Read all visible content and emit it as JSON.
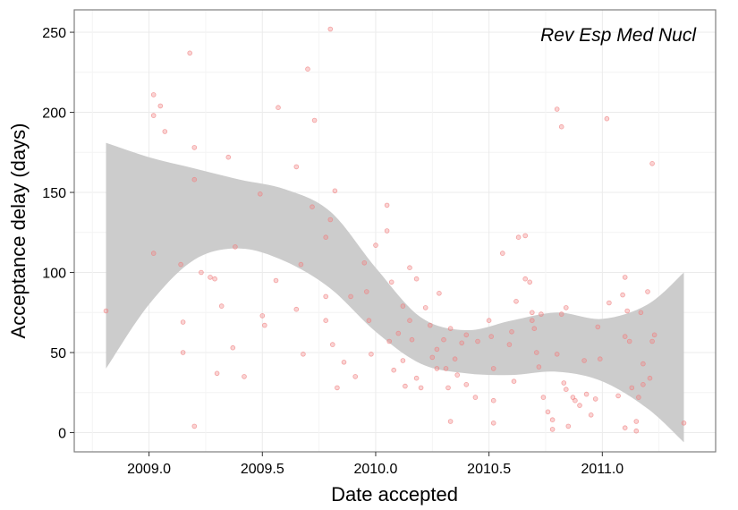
{
  "chart_data": {
    "type": "scatter",
    "title": "",
    "annotation": "Rev Esp Med Nucl",
    "xlabel": "Date accepted",
    "ylabel": "Acceptance delay (days)",
    "xlim": [
      2008.67,
      2011.5
    ],
    "ylim": [
      -12,
      264
    ],
    "xticks": [
      2009.0,
      2009.5,
      2010.0,
      2010.5,
      2011.0
    ],
    "xtick_labels": [
      "2009.0",
      "2009.5",
      "2010.0",
      "2010.5",
      "2011.0"
    ],
    "yticks": [
      0,
      50,
      100,
      150,
      200,
      250
    ],
    "ytick_labels": [
      "0",
      "50",
      "100",
      "150",
      "200",
      "250"
    ],
    "grid": true,
    "colors": {
      "points": "#f08080",
      "band": "#cccccc",
      "panel_border": "#7f7f7f",
      "grid": "#ebebeb"
    },
    "smooth_band": {
      "x": [
        2008.81,
        2009.0,
        2009.2,
        2009.4,
        2009.6,
        2009.8,
        2010.0,
        2010.2,
        2010.4,
        2010.6,
        2010.8,
        2011.0,
        2011.2,
        2011.36
      ],
      "upper": [
        181,
        172,
        165,
        158,
        152,
        138,
        103,
        72,
        64,
        70,
        75,
        71,
        80,
        100
      ],
      "lower": [
        40,
        80,
        108,
        115,
        107,
        90,
        63,
        43,
        37,
        36,
        38,
        32,
        15,
        -6
      ]
    },
    "points": [
      {
        "x": 2008.81,
        "y": 76
      },
      {
        "x": 2009.02,
        "y": 211
      },
      {
        "x": 2009.02,
        "y": 198
      },
      {
        "x": 2009.05,
        "y": 204
      },
      {
        "x": 2009.07,
        "y": 188
      },
      {
        "x": 2009.02,
        "y": 112
      },
      {
        "x": 2009.14,
        "y": 105
      },
      {
        "x": 2009.15,
        "y": 69
      },
      {
        "x": 2009.15,
        "y": 50
      },
      {
        "x": 2009.18,
        "y": 237
      },
      {
        "x": 2009.2,
        "y": 178
      },
      {
        "x": 2009.2,
        "y": 158
      },
      {
        "x": 2009.23,
        "y": 100
      },
      {
        "x": 2009.2,
        "y": 4
      },
      {
        "x": 2009.27,
        "y": 97
      },
      {
        "x": 2009.29,
        "y": 96
      },
      {
        "x": 2009.32,
        "y": 79
      },
      {
        "x": 2009.35,
        "y": 172
      },
      {
        "x": 2009.37,
        "y": 53
      },
      {
        "x": 2009.38,
        "y": 116
      },
      {
        "x": 2009.3,
        "y": 37
      },
      {
        "x": 2009.42,
        "y": 35
      },
      {
        "x": 2009.49,
        "y": 149
      },
      {
        "x": 2009.5,
        "y": 73
      },
      {
        "x": 2009.51,
        "y": 67
      },
      {
        "x": 2009.57,
        "y": 203
      },
      {
        "x": 2009.56,
        "y": 95
      },
      {
        "x": 2009.65,
        "y": 166
      },
      {
        "x": 2009.65,
        "y": 77
      },
      {
        "x": 2009.67,
        "y": 105
      },
      {
        "x": 2009.68,
        "y": 49
      },
      {
        "x": 2009.7,
        "y": 227
      },
      {
        "x": 2009.73,
        "y": 195
      },
      {
        "x": 2009.72,
        "y": 141
      },
      {
        "x": 2009.78,
        "y": 122
      },
      {
        "x": 2009.8,
        "y": 252
      },
      {
        "x": 2009.8,
        "y": 133
      },
      {
        "x": 2009.82,
        "y": 151
      },
      {
        "x": 2009.78,
        "y": 85
      },
      {
        "x": 2009.78,
        "y": 70
      },
      {
        "x": 2009.81,
        "y": 55
      },
      {
        "x": 2009.83,
        "y": 28
      },
      {
        "x": 2009.86,
        "y": 44
      },
      {
        "x": 2009.89,
        "y": 85
      },
      {
        "x": 2009.91,
        "y": 35
      },
      {
        "x": 2009.95,
        "y": 106
      },
      {
        "x": 2009.96,
        "y": 88
      },
      {
        "x": 2009.97,
        "y": 70
      },
      {
        "x": 2009.98,
        "y": 49
      },
      {
        "x": 2010.0,
        "y": 117
      },
      {
        "x": 2010.05,
        "y": 142
      },
      {
        "x": 2010.05,
        "y": 126
      },
      {
        "x": 2010.07,
        "y": 94
      },
      {
        "x": 2010.06,
        "y": 57
      },
      {
        "x": 2010.08,
        "y": 39
      },
      {
        "x": 2010.12,
        "y": 79
      },
      {
        "x": 2010.12,
        "y": 45
      },
      {
        "x": 2010.13,
        "y": 29
      },
      {
        "x": 2010.15,
        "y": 103
      },
      {
        "x": 2010.15,
        "y": 70
      },
      {
        "x": 2010.18,
        "y": 96
      },
      {
        "x": 2010.16,
        "y": 58
      },
      {
        "x": 2010.18,
        "y": 34
      },
      {
        "x": 2010.2,
        "y": 28
      },
      {
        "x": 2010.22,
        "y": 78
      },
      {
        "x": 2010.24,
        "y": 67
      },
      {
        "x": 2010.25,
        "y": 47
      },
      {
        "x": 2010.27,
        "y": 52
      },
      {
        "x": 2010.28,
        "y": 87
      },
      {
        "x": 2010.3,
        "y": 58
      },
      {
        "x": 2010.31,
        "y": 40
      },
      {
        "x": 2010.32,
        "y": 28
      },
      {
        "x": 2010.33,
        "y": 65
      },
      {
        "x": 2010.35,
        "y": 46
      },
      {
        "x": 2010.33,
        "y": 7
      },
      {
        "x": 2010.38,
        "y": 56
      },
      {
        "x": 2010.4,
        "y": 61
      },
      {
        "x": 2010.4,
        "y": 30
      },
      {
        "x": 2010.44,
        "y": 22
      },
      {
        "x": 2010.45,
        "y": 57
      },
      {
        "x": 2010.5,
        "y": 70
      },
      {
        "x": 2010.51,
        "y": 60
      },
      {
        "x": 2010.52,
        "y": 40
      },
      {
        "x": 2010.52,
        "y": 20
      },
      {
        "x": 2010.52,
        "y": 6
      },
      {
        "x": 2010.56,
        "y": 112
      },
      {
        "x": 2010.59,
        "y": 55
      },
      {
        "x": 2010.61,
        "y": 32
      },
      {
        "x": 2010.62,
        "y": 82
      },
      {
        "x": 2010.63,
        "y": 122
      },
      {
        "x": 2010.66,
        "y": 123
      },
      {
        "x": 2010.66,
        "y": 96
      },
      {
        "x": 2010.68,
        "y": 94
      },
      {
        "x": 2010.69,
        "y": 75
      },
      {
        "x": 2010.69,
        "y": 70
      },
      {
        "x": 2010.7,
        "y": 65
      },
      {
        "x": 2010.71,
        "y": 50
      },
      {
        "x": 2010.73,
        "y": 74
      },
      {
        "x": 2010.74,
        "y": 22
      },
      {
        "x": 2010.76,
        "y": 13
      },
      {
        "x": 2010.78,
        "y": 8
      },
      {
        "x": 2010.78,
        "y": 2
      },
      {
        "x": 2010.8,
        "y": 202
      },
      {
        "x": 2010.82,
        "y": 191
      },
      {
        "x": 2010.8,
        "y": 49
      },
      {
        "x": 2010.82,
        "y": 74
      },
      {
        "x": 2010.84,
        "y": 78
      },
      {
        "x": 2010.83,
        "y": 31
      },
      {
        "x": 2010.84,
        "y": 27
      },
      {
        "x": 2010.85,
        "y": 4
      },
      {
        "x": 2010.87,
        "y": 22
      },
      {
        "x": 2010.88,
        "y": 20
      },
      {
        "x": 2010.92,
        "y": 45
      },
      {
        "x": 2010.93,
        "y": 24
      },
      {
        "x": 2010.95,
        "y": 11
      },
      {
        "x": 2010.97,
        "y": 21
      },
      {
        "x": 2010.98,
        "y": 66
      },
      {
        "x": 2010.99,
        "y": 46
      },
      {
        "x": 2011.02,
        "y": 196
      },
      {
        "x": 2011.03,
        "y": 81
      },
      {
        "x": 2011.07,
        "y": 23
      },
      {
        "x": 2011.09,
        "y": 86
      },
      {
        "x": 2011.1,
        "y": 97
      },
      {
        "x": 2011.11,
        "y": 76
      },
      {
        "x": 2011.1,
        "y": 60
      },
      {
        "x": 2011.12,
        "y": 57
      },
      {
        "x": 2011.13,
        "y": 28
      },
      {
        "x": 2011.15,
        "y": 7
      },
      {
        "x": 2011.16,
        "y": 22
      },
      {
        "x": 2011.17,
        "y": 75
      },
      {
        "x": 2011.18,
        "y": 43
      },
      {
        "x": 2011.18,
        "y": 30
      },
      {
        "x": 2011.2,
        "y": 88
      },
      {
        "x": 2011.21,
        "y": 34
      },
      {
        "x": 2011.22,
        "y": 168
      },
      {
        "x": 2011.22,
        "y": 57
      },
      {
        "x": 2011.23,
        "y": 61
      },
      {
        "x": 2011.36,
        "y": 6
      },
      {
        "x": 2011.1,
        "y": 3
      },
      {
        "x": 2011.15,
        "y": 1
      },
      {
        "x": 2010.9,
        "y": 17
      },
      {
        "x": 2010.72,
        "y": 41
      },
      {
        "x": 2010.6,
        "y": 63
      },
      {
        "x": 2010.36,
        "y": 36
      },
      {
        "x": 2010.27,
        "y": 40
      },
      {
        "x": 2010.1,
        "y": 62
      }
    ]
  }
}
